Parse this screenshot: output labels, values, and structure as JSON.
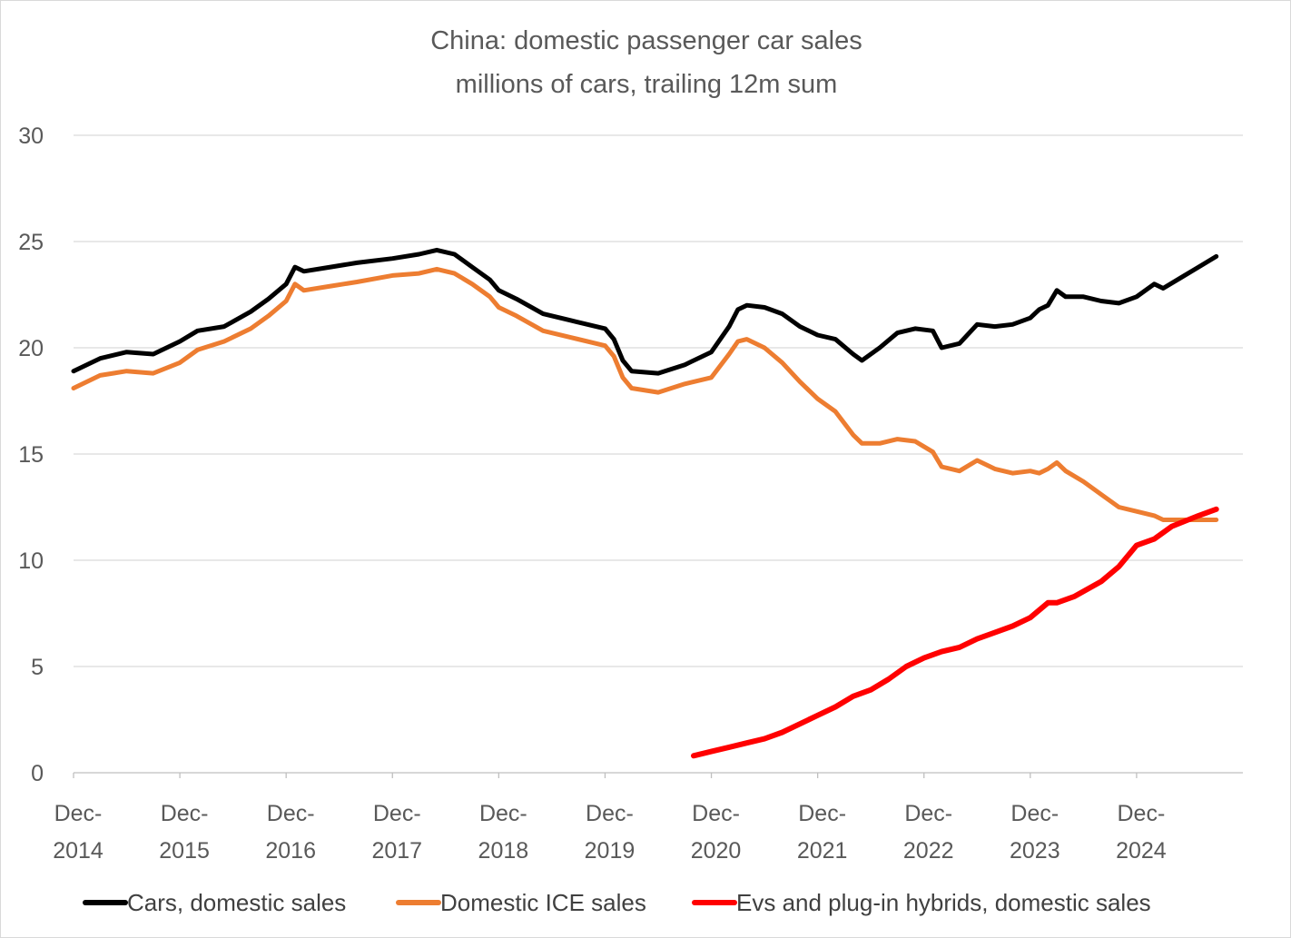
{
  "chart_data": {
    "type": "line",
    "title": "China: domestic passenger car sales",
    "subtitle": "millions of cars, trailing 12m sum",
    "xlabel": "",
    "ylabel": "",
    "ylim": [
      0,
      30
    ],
    "yticks": [
      "0",
      "5",
      "10",
      "15",
      "20",
      "25",
      "30"
    ],
    "xlim": [
      "2014-12",
      "2025-12"
    ],
    "xticks": [
      {
        "date": "2014-12",
        "line1": "Dec-",
        "line2": "2014"
      },
      {
        "date": "2015-12",
        "line1": "Dec-",
        "line2": "2015"
      },
      {
        "date": "2016-12",
        "line1": "Dec-",
        "line2": "2016"
      },
      {
        "date": "2017-12",
        "line1": "Dec-",
        "line2": "2017"
      },
      {
        "date": "2018-12",
        "line1": "Dec-",
        "line2": "2018"
      },
      {
        "date": "2019-12",
        "line1": "Dec-",
        "line2": "2019"
      },
      {
        "date": "2020-12",
        "line1": "Dec-",
        "line2": "2020"
      },
      {
        "date": "2021-12",
        "line1": "Dec-",
        "line2": "2021"
      },
      {
        "date": "2022-12",
        "line1": "Dec-",
        "line2": "2022"
      },
      {
        "date": "2023-12",
        "line1": "Dec-",
        "line2": "2023"
      },
      {
        "date": "2024-12",
        "line1": "Dec-",
        "line2": "2024"
      }
    ],
    "grid": "horizontal",
    "legend_position": "bottom",
    "series": [
      {
        "name": "Cars, domestic sales",
        "color": "#000000",
        "points": [
          [
            "2014-12",
            18.9
          ],
          [
            "2015-03",
            19.5
          ],
          [
            "2015-06",
            19.8
          ],
          [
            "2015-09",
            19.7
          ],
          [
            "2015-12",
            20.3
          ],
          [
            "2016-02",
            20.8
          ],
          [
            "2016-05",
            21.0
          ],
          [
            "2016-08",
            21.7
          ],
          [
            "2016-10",
            22.3
          ],
          [
            "2016-12",
            23.0
          ],
          [
            "2017-01",
            23.8
          ],
          [
            "2017-02",
            23.6
          ],
          [
            "2017-05",
            23.8
          ],
          [
            "2017-08",
            24.0
          ],
          [
            "2017-12",
            24.2
          ],
          [
            "2018-03",
            24.4
          ],
          [
            "2018-05",
            24.6
          ],
          [
            "2018-07",
            24.4
          ],
          [
            "2018-09",
            23.8
          ],
          [
            "2018-11",
            23.2
          ],
          [
            "2018-12",
            22.7
          ],
          [
            "2019-02",
            22.3
          ],
          [
            "2019-05",
            21.6
          ],
          [
            "2019-08",
            21.3
          ],
          [
            "2019-12",
            20.9
          ],
          [
            "2020-01",
            20.4
          ],
          [
            "2020-02",
            19.4
          ],
          [
            "2020-03",
            18.9
          ],
          [
            "2020-06",
            18.8
          ],
          [
            "2020-09",
            19.2
          ],
          [
            "2020-12",
            19.8
          ],
          [
            "2021-02",
            21.0
          ],
          [
            "2021-03",
            21.8
          ],
          [
            "2021-04",
            22.0
          ],
          [
            "2021-06",
            21.9
          ],
          [
            "2021-08",
            21.6
          ],
          [
            "2021-10",
            21.0
          ],
          [
            "2021-12",
            20.6
          ],
          [
            "2022-02",
            20.4
          ],
          [
            "2022-04",
            19.7
          ],
          [
            "2022-05",
            19.4
          ],
          [
            "2022-07",
            20.0
          ],
          [
            "2022-09",
            20.7
          ],
          [
            "2022-11",
            20.9
          ],
          [
            "2023-01",
            20.8
          ],
          [
            "2023-02",
            20.0
          ],
          [
            "2023-04",
            20.2
          ],
          [
            "2023-06",
            21.1
          ],
          [
            "2023-08",
            21.0
          ],
          [
            "2023-10",
            21.1
          ],
          [
            "2023-12",
            21.4
          ],
          [
            "2024-01",
            21.8
          ],
          [
            "2024-02",
            22.0
          ],
          [
            "2024-03",
            22.7
          ],
          [
            "2024-04",
            22.4
          ],
          [
            "2024-06",
            22.4
          ],
          [
            "2024-08",
            22.2
          ],
          [
            "2024-10",
            22.1
          ],
          [
            "2024-12",
            22.4
          ],
          [
            "2025-02",
            23.0
          ],
          [
            "2025-03",
            22.8
          ],
          [
            "2025-05",
            23.3
          ],
          [
            "2025-07",
            23.8
          ],
          [
            "2025-09",
            24.3
          ]
        ]
      },
      {
        "name": "Domestic ICE sales",
        "color": "#ed7d31",
        "points": [
          [
            "2014-12",
            18.1
          ],
          [
            "2015-03",
            18.7
          ],
          [
            "2015-06",
            18.9
          ],
          [
            "2015-09",
            18.8
          ],
          [
            "2015-12",
            19.3
          ],
          [
            "2016-02",
            19.9
          ],
          [
            "2016-05",
            20.3
          ],
          [
            "2016-08",
            20.9
          ],
          [
            "2016-10",
            21.5
          ],
          [
            "2016-12",
            22.2
          ],
          [
            "2017-01",
            23.0
          ],
          [
            "2017-02",
            22.7
          ],
          [
            "2017-05",
            22.9
          ],
          [
            "2017-08",
            23.1
          ],
          [
            "2017-12",
            23.4
          ],
          [
            "2018-03",
            23.5
          ],
          [
            "2018-05",
            23.7
          ],
          [
            "2018-07",
            23.5
          ],
          [
            "2018-09",
            23.0
          ],
          [
            "2018-11",
            22.4
          ],
          [
            "2018-12",
            21.9
          ],
          [
            "2019-02",
            21.5
          ],
          [
            "2019-05",
            20.8
          ],
          [
            "2019-08",
            20.5
          ],
          [
            "2019-12",
            20.1
          ],
          [
            "2020-01",
            19.6
          ],
          [
            "2020-02",
            18.6
          ],
          [
            "2020-03",
            18.1
          ],
          [
            "2020-06",
            17.9
          ],
          [
            "2020-09",
            18.3
          ],
          [
            "2020-12",
            18.6
          ],
          [
            "2021-02",
            19.7
          ],
          [
            "2021-03",
            20.3
          ],
          [
            "2021-04",
            20.4
          ],
          [
            "2021-06",
            20.0
          ],
          [
            "2021-08",
            19.3
          ],
          [
            "2021-10",
            18.4
          ],
          [
            "2021-12",
            17.6
          ],
          [
            "2022-02",
            17.0
          ],
          [
            "2022-04",
            15.9
          ],
          [
            "2022-05",
            15.5
          ],
          [
            "2022-07",
            15.5
          ],
          [
            "2022-09",
            15.7
          ],
          [
            "2022-11",
            15.6
          ],
          [
            "2023-01",
            15.1
          ],
          [
            "2023-02",
            14.4
          ],
          [
            "2023-04",
            14.2
          ],
          [
            "2023-06",
            14.7
          ],
          [
            "2023-08",
            14.3
          ],
          [
            "2023-10",
            14.1
          ],
          [
            "2023-12",
            14.2
          ],
          [
            "2024-01",
            14.1
          ],
          [
            "2024-02",
            14.3
          ],
          [
            "2024-03",
            14.6
          ],
          [
            "2024-04",
            14.2
          ],
          [
            "2024-06",
            13.7
          ],
          [
            "2024-08",
            13.1
          ],
          [
            "2024-10",
            12.5
          ],
          [
            "2024-12",
            12.3
          ],
          [
            "2025-02",
            12.1
          ],
          [
            "2025-03",
            11.9
          ],
          [
            "2025-05",
            11.9
          ],
          [
            "2025-07",
            11.9
          ],
          [
            "2025-09",
            11.9
          ]
        ]
      },
      {
        "name": "Evs and plug-in  hybrids, domestic sales",
        "color": "#ff0000",
        "points": [
          [
            "2020-10",
            0.8
          ],
          [
            "2020-12",
            1.0
          ],
          [
            "2021-02",
            1.2
          ],
          [
            "2021-04",
            1.4
          ],
          [
            "2021-06",
            1.6
          ],
          [
            "2021-08",
            1.9
          ],
          [
            "2021-10",
            2.3
          ],
          [
            "2021-12",
            2.7
          ],
          [
            "2022-02",
            3.1
          ],
          [
            "2022-04",
            3.6
          ],
          [
            "2022-06",
            3.9
          ],
          [
            "2022-08",
            4.4
          ],
          [
            "2022-10",
            5.0
          ],
          [
            "2022-12",
            5.4
          ],
          [
            "2023-02",
            5.7
          ],
          [
            "2023-04",
            5.9
          ],
          [
            "2023-06",
            6.3
          ],
          [
            "2023-08",
            6.6
          ],
          [
            "2023-10",
            6.9
          ],
          [
            "2023-12",
            7.3
          ],
          [
            "2024-02",
            8.0
          ],
          [
            "2024-03",
            8.0
          ],
          [
            "2024-05",
            8.3
          ],
          [
            "2024-08",
            9.0
          ],
          [
            "2024-10",
            9.7
          ],
          [
            "2024-12",
            10.7
          ],
          [
            "2025-02",
            11.0
          ],
          [
            "2025-04",
            11.6
          ],
          [
            "2025-07",
            12.1
          ],
          [
            "2025-09",
            12.4
          ]
        ]
      }
    ]
  }
}
